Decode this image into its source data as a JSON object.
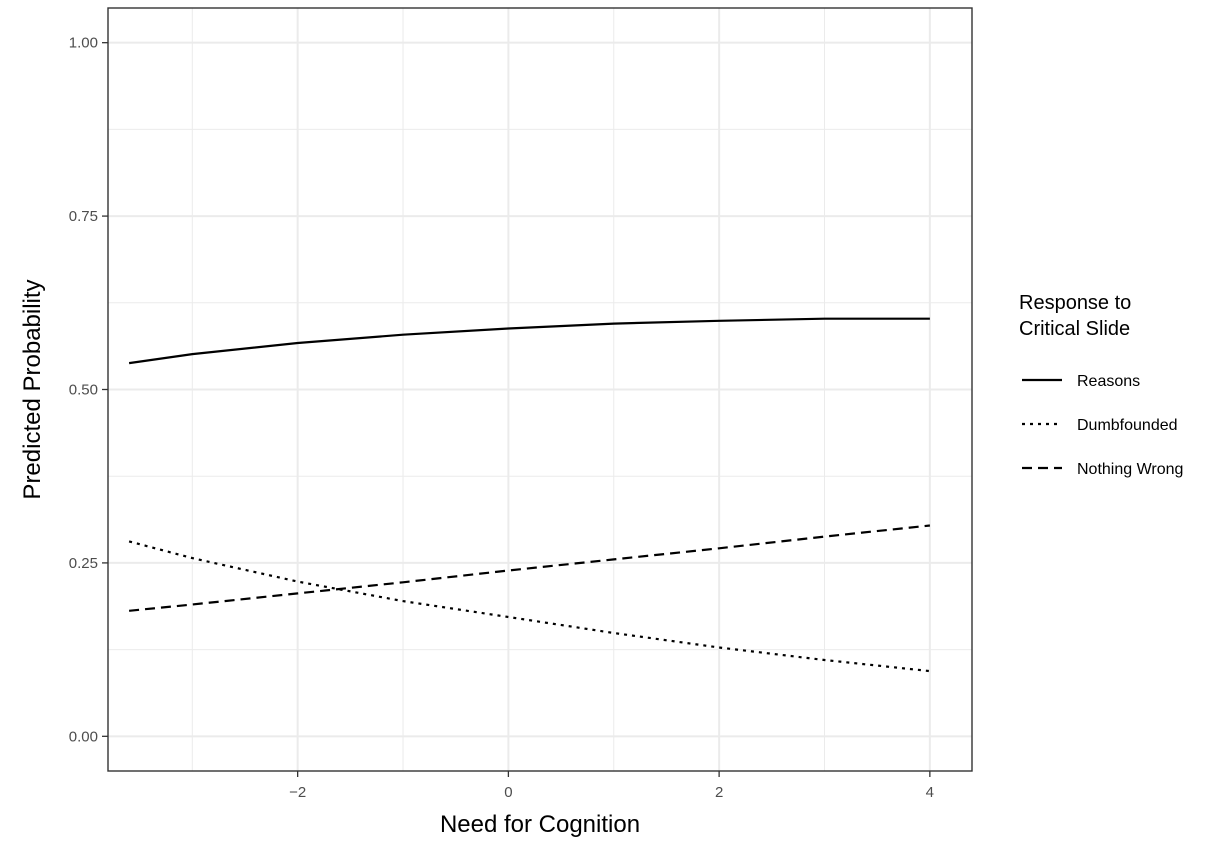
{
  "chart_data": {
    "type": "line",
    "xlabel": "Need for Cognition",
    "ylabel": "Predicted Probability",
    "xlim": [
      -3.8,
      4.4
    ],
    "ylim": [
      -0.05,
      1.05
    ],
    "x_ticks": [
      -2,
      0,
      2,
      4
    ],
    "x_tick_labels": [
      "−2",
      "0",
      "2",
      "4"
    ],
    "y_ticks": [
      0.0,
      0.25,
      0.5,
      0.75,
      1.0
    ],
    "y_tick_labels": [
      "0.00",
      "0.25",
      "0.50",
      "0.75",
      "1.00"
    ],
    "grid": true,
    "legend": {
      "title_lines": [
        "Response to",
        "Critical Slide"
      ],
      "position": "right"
    },
    "series": [
      {
        "name": "Reasons",
        "linetype": "solid",
        "color": "#000000",
        "x": [
          -3.6,
          -3.0,
          -2.0,
          -1.0,
          0.0,
          1.0,
          2.0,
          3.0,
          4.0
        ],
        "y": [
          0.538,
          0.551,
          0.567,
          0.579,
          0.588,
          0.595,
          0.599,
          0.602,
          0.602
        ]
      },
      {
        "name": "Dumbfounded",
        "linetype": "dotted",
        "color": "#000000",
        "x": [
          -3.6,
          -3.0,
          -2.0,
          -1.0,
          0.0,
          1.0,
          2.0,
          3.0,
          4.0
        ],
        "y": [
          0.281,
          0.257,
          0.223,
          0.195,
          0.172,
          0.149,
          0.128,
          0.11,
          0.094
        ]
      },
      {
        "name": "Nothing Wrong",
        "linetype": "dashed",
        "color": "#000000",
        "x": [
          -3.6,
          -3.0,
          -2.0,
          -1.0,
          0.0,
          1.0,
          2.0,
          3.0,
          4.0
        ],
        "y": [
          0.181,
          0.19,
          0.206,
          0.222,
          0.239,
          0.255,
          0.271,
          0.288,
          0.304
        ]
      }
    ]
  }
}
